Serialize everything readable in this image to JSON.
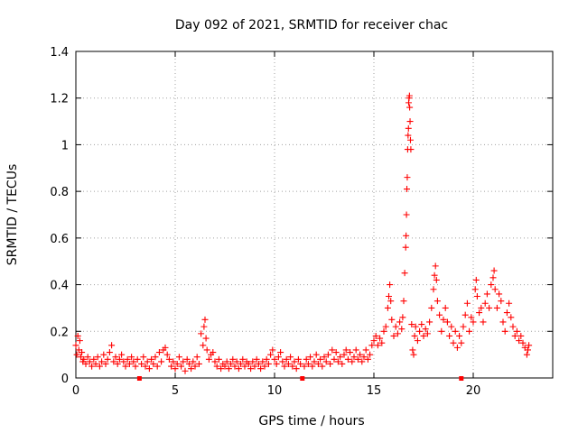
{
  "chart_data": {
    "type": "scatter",
    "title": "Day 092 of 2021, SRMTID for receiver chac",
    "xlabel": "GPS time / hours",
    "ylabel": "SRMTID / TECUs",
    "xlim": [
      0,
      24
    ],
    "ylim": [
      0,
      1.4
    ],
    "x_ticks": [
      0,
      5,
      10,
      15,
      20
    ],
    "y_ticks": [
      0,
      0.2,
      0.4,
      0.6,
      0.8,
      1,
      1.2,
      1.4
    ],
    "x_tick_labels": [
      "0",
      "5",
      "10",
      "15",
      "20"
    ],
    "y_tick_labels": [
      "0",
      "0.2",
      "0.4",
      "0.6",
      "0.8",
      "1",
      "1.2",
      "1.4"
    ],
    "grid": true,
    "marker": "+",
    "color": "#ff0000",
    "gap_markers_x": [
      3.2,
      11.4,
      19.4
    ],
    "series": [
      {
        "name": "SRMTID",
        "points": [
          [
            0.0,
            0.14
          ],
          [
            0.05,
            0.1
          ],
          [
            0.1,
            0.18
          ],
          [
            0.15,
            0.12
          ],
          [
            0.2,
            0.16
          ],
          [
            0.25,
            0.09
          ],
          [
            0.3,
            0.11
          ],
          [
            0.35,
            0.07
          ],
          [
            0.4,
            0.08
          ],
          [
            0.5,
            0.06
          ],
          [
            0.6,
            0.09
          ],
          [
            0.7,
            0.07
          ],
          [
            0.8,
            0.05
          ],
          [
            0.9,
            0.08
          ],
          [
            1.0,
            0.06
          ],
          [
            1.1,
            0.09
          ],
          [
            1.2,
            0.05
          ],
          [
            1.3,
            0.07
          ],
          [
            1.4,
            0.1
          ],
          [
            1.5,
            0.06
          ],
          [
            1.6,
            0.08
          ],
          [
            1.7,
            0.11
          ],
          [
            1.8,
            0.14
          ],
          [
            1.9,
            0.07
          ],
          [
            2.0,
            0.09
          ],
          [
            2.1,
            0.06
          ],
          [
            2.2,
            0.08
          ],
          [
            2.3,
            0.1
          ],
          [
            2.4,
            0.07
          ],
          [
            2.5,
            0.05
          ],
          [
            2.6,
            0.08
          ],
          [
            2.7,
            0.06
          ],
          [
            2.8,
            0.09
          ],
          [
            2.9,
            0.07
          ],
          [
            3.0,
            0.05
          ],
          [
            3.1,
            0.08
          ],
          [
            3.3,
            0.06
          ],
          [
            3.4,
            0.09
          ],
          [
            3.5,
            0.05
          ],
          [
            3.6,
            0.07
          ],
          [
            3.7,
            0.04
          ],
          [
            3.8,
            0.08
          ],
          [
            3.9,
            0.06
          ],
          [
            4.0,
            0.09
          ],
          [
            4.1,
            0.05
          ],
          [
            4.2,
            0.11
          ],
          [
            4.3,
            0.07
          ],
          [
            4.4,
            0.12
          ],
          [
            4.5,
            0.13
          ],
          [
            4.6,
            0.1
          ],
          [
            4.7,
            0.08
          ],
          [
            4.8,
            0.05
          ],
          [
            4.9,
            0.07
          ],
          [
            5.0,
            0.04
          ],
          [
            5.1,
            0.06
          ],
          [
            5.2,
            0.09
          ],
          [
            5.3,
            0.05
          ],
          [
            5.4,
            0.07
          ],
          [
            5.5,
            0.03
          ],
          [
            5.6,
            0.08
          ],
          [
            5.7,
            0.06
          ],
          [
            5.8,
            0.04
          ],
          [
            5.9,
            0.07
          ],
          [
            6.0,
            0.05
          ],
          [
            6.1,
            0.09
          ],
          [
            6.2,
            0.06
          ],
          [
            6.3,
            0.19
          ],
          [
            6.4,
            0.14
          ],
          [
            6.45,
            0.22
          ],
          [
            6.5,
            0.25
          ],
          [
            6.55,
            0.17
          ],
          [
            6.6,
            0.12
          ],
          [
            6.7,
            0.08
          ],
          [
            6.8,
            0.1
          ],
          [
            6.9,
            0.11
          ],
          [
            7.0,
            0.07
          ],
          [
            7.1,
            0.05
          ],
          [
            7.2,
            0.08
          ],
          [
            7.3,
            0.04
          ],
          [
            7.4,
            0.06
          ],
          [
            7.5,
            0.05
          ],
          [
            7.6,
            0.07
          ],
          [
            7.7,
            0.04
          ],
          [
            7.8,
            0.06
          ],
          [
            7.9,
            0.08
          ],
          [
            8.0,
            0.05
          ],
          [
            8.1,
            0.07
          ],
          [
            8.2,
            0.04
          ],
          [
            8.3,
            0.06
          ],
          [
            8.4,
            0.08
          ],
          [
            8.5,
            0.05
          ],
          [
            8.6,
            0.07
          ],
          [
            8.7,
            0.06
          ],
          [
            8.8,
            0.04
          ],
          [
            8.9,
            0.07
          ],
          [
            9.0,
            0.05
          ],
          [
            9.1,
            0.08
          ],
          [
            9.2,
            0.06
          ],
          [
            9.3,
            0.04
          ],
          [
            9.4,
            0.07
          ],
          [
            9.5,
            0.05
          ],
          [
            9.6,
            0.08
          ],
          [
            9.7,
            0.06
          ],
          [
            9.8,
            0.1
          ],
          [
            9.9,
            0.12
          ],
          [
            10.0,
            0.08
          ],
          [
            10.1,
            0.06
          ],
          [
            10.2,
            0.09
          ],
          [
            10.3,
            0.11
          ],
          [
            10.4,
            0.07
          ],
          [
            10.5,
            0.05
          ],
          [
            10.6,
            0.08
          ],
          [
            10.7,
            0.06
          ],
          [
            10.8,
            0.09
          ],
          [
            10.9,
            0.05
          ],
          [
            11.0,
            0.07
          ],
          [
            11.1,
            0.04
          ],
          [
            11.2,
            0.08
          ],
          [
            11.3,
            0.06
          ],
          [
            11.5,
            0.05
          ],
          [
            11.6,
            0.08
          ],
          [
            11.7,
            0.06
          ],
          [
            11.8,
            0.09
          ],
          [
            11.9,
            0.05
          ],
          [
            12.0,
            0.07
          ],
          [
            12.1,
            0.1
          ],
          [
            12.2,
            0.06
          ],
          [
            12.3,
            0.08
          ],
          [
            12.4,
            0.05
          ],
          [
            12.5,
            0.09
          ],
          [
            12.6,
            0.07
          ],
          [
            12.7,
            0.1
          ],
          [
            12.8,
            0.06
          ],
          [
            12.9,
            0.12
          ],
          [
            13.0,
            0.08
          ],
          [
            13.1,
            0.11
          ],
          [
            13.2,
            0.07
          ],
          [
            13.3,
            0.09
          ],
          [
            13.4,
            0.06
          ],
          [
            13.5,
            0.1
          ],
          [
            13.6,
            0.12
          ],
          [
            13.7,
            0.08
          ],
          [
            13.8,
            0.11
          ],
          [
            13.9,
            0.07
          ],
          [
            14.0,
            0.09
          ],
          [
            14.1,
            0.12
          ],
          [
            14.2,
            0.08
          ],
          [
            14.3,
            0.1
          ],
          [
            14.4,
            0.07
          ],
          [
            14.5,
            0.09
          ],
          [
            14.6,
            0.12
          ],
          [
            14.7,
            0.08
          ],
          [
            14.8,
            0.1
          ],
          [
            14.9,
            0.14
          ],
          [
            15.0,
            0.16
          ],
          [
            15.1,
            0.18
          ],
          [
            15.2,
            0.14
          ],
          [
            15.3,
            0.17
          ],
          [
            15.4,
            0.15
          ],
          [
            15.5,
            0.2
          ],
          [
            15.6,
            0.22
          ],
          [
            15.7,
            0.3
          ],
          [
            15.75,
            0.35
          ],
          [
            15.8,
            0.4
          ],
          [
            15.85,
            0.33
          ],
          [
            15.9,
            0.25
          ],
          [
            16.0,
            0.18
          ],
          [
            16.1,
            0.22
          ],
          [
            16.2,
            0.19
          ],
          [
            16.3,
            0.24
          ],
          [
            16.4,
            0.21
          ],
          [
            16.45,
            0.26
          ],
          [
            16.5,
            0.33
          ],
          [
            16.55,
            0.45
          ],
          [
            16.6,
            0.56
          ],
          [
            16.62,
            0.61
          ],
          [
            16.64,
            0.7
          ],
          [
            16.66,
            0.81
          ],
          [
            16.68,
            0.86
          ],
          [
            16.7,
            0.98
          ],
          [
            16.72,
            1.04
          ],
          [
            16.74,
            1.07
          ],
          [
            16.75,
            1.18
          ],
          [
            16.77,
            1.2
          ],
          [
            16.79,
            1.21
          ],
          [
            16.8,
            1.16
          ],
          [
            16.82,
            1.1
          ],
          [
            16.84,
            1.02
          ],
          [
            16.86,
            0.98
          ],
          [
            16.9,
            0.23
          ],
          [
            16.95,
            0.12
          ],
          [
            17.0,
            0.1
          ],
          [
            17.05,
            0.18
          ],
          [
            17.1,
            0.22
          ],
          [
            17.2,
            0.16
          ],
          [
            17.3,
            0.2
          ],
          [
            17.4,
            0.23
          ],
          [
            17.5,
            0.18
          ],
          [
            17.6,
            0.21
          ],
          [
            17.7,
            0.19
          ],
          [
            17.8,
            0.24
          ],
          [
            17.9,
            0.3
          ],
          [
            18.0,
            0.38
          ],
          [
            18.05,
            0.44
          ],
          [
            18.1,
            0.48
          ],
          [
            18.15,
            0.42
          ],
          [
            18.2,
            0.33
          ],
          [
            18.3,
            0.27
          ],
          [
            18.4,
            0.2
          ],
          [
            18.5,
            0.25
          ],
          [
            18.6,
            0.3
          ],
          [
            18.7,
            0.24
          ],
          [
            18.8,
            0.18
          ],
          [
            18.9,
            0.22
          ],
          [
            19.0,
            0.15
          ],
          [
            19.1,
            0.2
          ],
          [
            19.2,
            0.13
          ],
          [
            19.3,
            0.18
          ],
          [
            19.4,
            0.15
          ],
          [
            19.5,
            0.22
          ],
          [
            19.6,
            0.27
          ],
          [
            19.7,
            0.32
          ],
          [
            19.8,
            0.2
          ],
          [
            19.9,
            0.26
          ],
          [
            20.0,
            0.24
          ],
          [
            20.1,
            0.38
          ],
          [
            20.15,
            0.42
          ],
          [
            20.2,
            0.35
          ],
          [
            20.3,
            0.28
          ],
          [
            20.4,
            0.3
          ],
          [
            20.5,
            0.24
          ],
          [
            20.6,
            0.32
          ],
          [
            20.7,
            0.36
          ],
          [
            20.8,
            0.3
          ],
          [
            20.9,
            0.4
          ],
          [
            21.0,
            0.43
          ],
          [
            21.05,
            0.46
          ],
          [
            21.1,
            0.38
          ],
          [
            21.2,
            0.3
          ],
          [
            21.3,
            0.36
          ],
          [
            21.4,
            0.33
          ],
          [
            21.5,
            0.24
          ],
          [
            21.6,
            0.2
          ],
          [
            21.7,
            0.28
          ],
          [
            21.8,
            0.32
          ],
          [
            21.9,
            0.26
          ],
          [
            22.0,
            0.22
          ],
          [
            22.1,
            0.18
          ],
          [
            22.2,
            0.2
          ],
          [
            22.3,
            0.16
          ],
          [
            22.4,
            0.18
          ],
          [
            22.5,
            0.15
          ],
          [
            22.6,
            0.13
          ],
          [
            22.7,
            0.1
          ],
          [
            22.75,
            0.12
          ],
          [
            22.8,
            0.14
          ]
        ]
      }
    ]
  }
}
